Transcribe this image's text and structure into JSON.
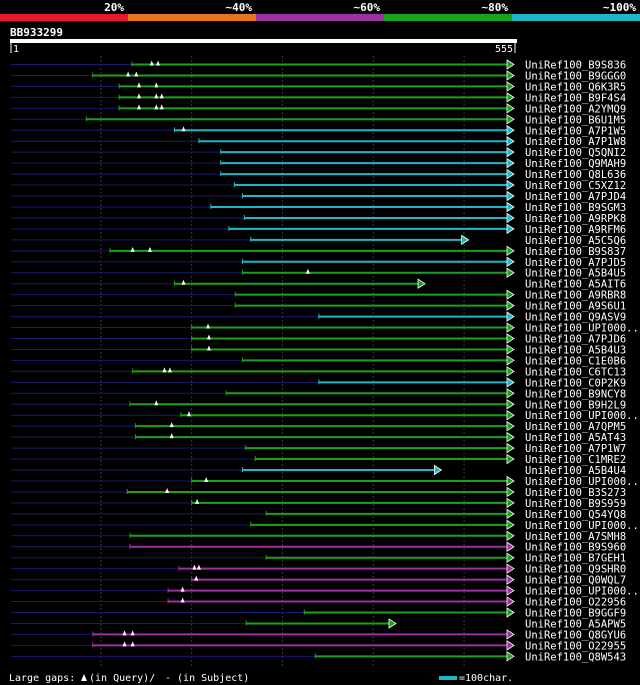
{
  "chart_data": {
    "type": "alignment",
    "query": {
      "name": "BB933299",
      "start": 1,
      "end": 555
    },
    "identity_legend": [
      {
        "label": "20%",
        "color": "#e8192c"
      },
      {
        "label": "~40%",
        "color": "#e8741c"
      },
      {
        "label": "~60%",
        "color": "#a02fa0"
      },
      {
        "label": "~80%",
        "color": "#1ba21b"
      },
      {
        "label": "~100%",
        "color": "#1cb8c8"
      }
    ],
    "footer": {
      "gaps_label": "Large gaps:",
      "query_gap_label": "(in Query)/",
      "subject_gap_label": "- (in Subject)",
      "scale_label": "=100char."
    },
    "hits": [
      {
        "name": "UniRef100_B9S836",
        "start": 134,
        "end": 555,
        "bin": 3,
        "q": [
          156,
          163
        ]
      },
      {
        "name": "UniRef100_B9GGG0",
        "start": 91,
        "end": 555,
        "bin": 3,
        "q": [
          130,
          139
        ]
      },
      {
        "name": "UniRef100_Q6K3R5",
        "start": 120,
        "end": 555,
        "bin": 3,
        "q": [
          142,
          161
        ]
      },
      {
        "name": "UniRef100_B9F4S4",
        "start": 120,
        "end": 555,
        "bin": 3,
        "q": [
          142,
          161,
          167
        ]
      },
      {
        "name": "UniRef100_A2YMQ9",
        "start": 120,
        "end": 555,
        "bin": 3,
        "q": [
          142,
          161,
          167
        ]
      },
      {
        "name": "UniRef100_B6U1M5",
        "start": 84,
        "end": 555,
        "bin": 3,
        "q": []
      },
      {
        "name": "UniRef100_A7P1W5",
        "start": 181,
        "end": 555,
        "bin": 4,
        "q": [
          191
        ]
      },
      {
        "name": "UniRef100_A7P1W8",
        "start": 208,
        "end": 555,
        "bin": 4,
        "q": []
      },
      {
        "name": "UniRef100_Q5QNI2",
        "start": 232,
        "end": 555,
        "bin": 4,
        "q": []
      },
      {
        "name": "UniRef100_Q9MAH9",
        "start": 232,
        "end": 555,
        "bin": 4,
        "q": []
      },
      {
        "name": "UniRef100_Q8L636",
        "start": 232,
        "end": 555,
        "bin": 4,
        "q": []
      },
      {
        "name": "UniRef100_C5XZ12",
        "start": 247,
        "end": 555,
        "bin": 4,
        "q": []
      },
      {
        "name": "UniRef100_A7PJD4",
        "start": 256,
        "end": 555,
        "bin": 4,
        "q": []
      },
      {
        "name": "UniRef100_B9SGM3",
        "start": 221,
        "end": 555,
        "bin": 4,
        "q": []
      },
      {
        "name": "UniRef100_A9RPK8",
        "start": 258,
        "end": 555,
        "bin": 4,
        "q": []
      },
      {
        "name": "UniRef100_A9RFM6",
        "start": 241,
        "end": 555,
        "bin": 4,
        "q": []
      },
      {
        "name": "UniRef100_A5C5Q6",
        "start": 265,
        "end": 505,
        "bin": 4,
        "q": []
      },
      {
        "name": "UniRef100_B9S837",
        "start": 110,
        "end": 555,
        "bin": 3,
        "q": [
          135,
          154
        ]
      },
      {
        "name": "UniRef100_A7PJD5",
        "start": 256,
        "end": 555,
        "bin": 4,
        "q": []
      },
      {
        "name": "UniRef100_A5B4U5",
        "start": 256,
        "end": 555,
        "bin": 3,
        "q": [
          328
        ]
      },
      {
        "name": "UniRef100_A5AIT6",
        "start": 181,
        "end": 457,
        "bin": 3,
        "q": [
          191
        ]
      },
      {
        "name": "UniRef100_A9RBR8",
        "start": 248,
        "end": 555,
        "bin": 3,
        "q": []
      },
      {
        "name": "UniRef100_A9S6U1",
        "start": 248,
        "end": 555,
        "bin": 3,
        "q": []
      },
      {
        "name": "UniRef100_Q9ASV9",
        "start": 340,
        "end": 555,
        "bin": 4,
        "q": []
      },
      {
        "name": "UniRef100_UPI000...",
        "start": 200,
        "end": 555,
        "bin": 3,
        "q": [
          218
        ]
      },
      {
        "name": "UniRef100_A7PJD6",
        "start": 200,
        "end": 555,
        "bin": 3,
        "q": [
          219
        ]
      },
      {
        "name": "UniRef100_A5B4U3",
        "start": 200,
        "end": 555,
        "bin": 3,
        "q": [
          219
        ]
      },
      {
        "name": "UniRef100_C1E0B6",
        "start": 256,
        "end": 555,
        "bin": 3,
        "q": []
      },
      {
        "name": "UniRef100_C6TC13",
        "start": 135,
        "end": 555,
        "bin": 3,
        "q": [
          170,
          176
        ]
      },
      {
        "name": "UniRef100_C0P2K9",
        "start": 340,
        "end": 555,
        "bin": 4,
        "q": []
      },
      {
        "name": "UniRef100_B9NCY8",
        "start": 238,
        "end": 555,
        "bin": 3,
        "q": []
      },
      {
        "name": "UniRef100_B9H2L9",
        "start": 132,
        "end": 555,
        "bin": 3,
        "q": [
          161
        ]
      },
      {
        "name": "UniRef100_UPI000...",
        "start": 188,
        "end": 555,
        "bin": 3,
        "q": [
          197
        ]
      },
      {
        "name": "UniRef100_A7QPM5",
        "start": 138,
        "end": 555,
        "bin": 3,
        "q": [
          178
        ]
      },
      {
        "name": "UniRef100_A5AT43",
        "start": 138,
        "end": 555,
        "bin": 3,
        "q": [
          178
        ]
      },
      {
        "name": "UniRef100_A7P1W7",
        "start": 259,
        "end": 555,
        "bin": 3,
        "q": []
      },
      {
        "name": "UniRef100_C1MRE2",
        "start": 270,
        "end": 555,
        "bin": 3,
        "q": []
      },
      {
        "name": "UniRef100_A5B4U4",
        "start": 256,
        "end": 475,
        "bin": 4,
        "q": []
      },
      {
        "name": "UniRef100_UPI000...",
        "start": 200,
        "end": 555,
        "bin": 3,
        "q": [
          216
        ]
      },
      {
        "name": "UniRef100_B3S273",
        "start": 129,
        "end": 555,
        "bin": 3,
        "q": [
          173
        ]
      },
      {
        "name": "UniRef100_B9S959",
        "start": 200,
        "end": 555,
        "bin": 3,
        "q": [
          206
        ]
      },
      {
        "name": "UniRef100_Q54YQ8",
        "start": 282,
        "end": 555,
        "bin": 3,
        "q": []
      },
      {
        "name": "UniRef100_UPI000...",
        "start": 265,
        "end": 555,
        "bin": 3,
        "q": []
      },
      {
        "name": "UniRef100_A7SMH8",
        "start": 132,
        "end": 555,
        "bin": 3,
        "q": []
      },
      {
        "name": "UniRef100_B9S960",
        "start": 132,
        "end": 555,
        "bin": 2,
        "q": []
      },
      {
        "name": "UniRef100_B7GEH1",
        "start": 282,
        "end": 555,
        "bin": 3,
        "q": []
      },
      {
        "name": "UniRef100_Q9SHR0",
        "start": 186,
        "end": 555,
        "bin": 2,
        "q": [
          203,
          208
        ]
      },
      {
        "name": "UniRef100_Q0WQL7",
        "start": 200,
        "end": 555,
        "bin": 2,
        "q": [
          205
        ]
      },
      {
        "name": "UniRef100_UPI000...",
        "start": 174,
        "end": 555,
        "bin": 2,
        "q": [
          190
        ]
      },
      {
        "name": "UniRef100_O22956",
        "start": 174,
        "end": 555,
        "bin": 2,
        "q": [
          190
        ]
      },
      {
        "name": "UniRef100_B9GGF9",
        "start": 324,
        "end": 555,
        "bin": 3,
        "q": []
      },
      {
        "name": "UniRef100_A5APW5",
        "start": 260,
        "end": 425,
        "bin": 3,
        "q": []
      },
      {
        "name": "UniRef100_Q8GYU6",
        "start": 91,
        "end": 555,
        "bin": 2,
        "q": [
          126,
          135
        ]
      },
      {
        "name": "UniRef100_O22955",
        "start": 91,
        "end": 555,
        "bin": 2,
        "q": [
          126,
          135
        ]
      },
      {
        "name": "UniRef100_Q8W543",
        "start": 336,
        "end": 555,
        "bin": 3,
        "q": []
      }
    ]
  }
}
